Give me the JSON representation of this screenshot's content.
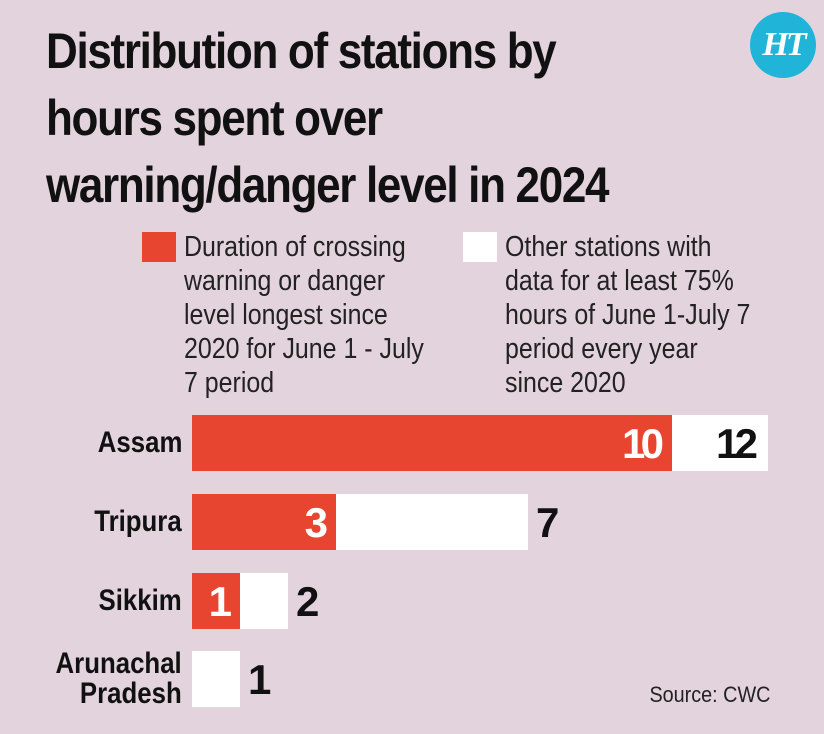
{
  "title_lines": [
    "Distribution of stations by",
    "hours spent over",
    "warning/danger level in 2024"
  ],
  "logo_text": "HT",
  "legend": [
    {
      "lines": [
        "Duration of crossing",
        "warning or danger",
        "level longest since",
        "2020 for June 1 - July",
        "7 period"
      ],
      "color": "#e84530"
    },
    {
      "lines": [
        "Other stations with",
        "data for at least 75%",
        "hours of June 1-July 7",
        "period every year",
        "since 2020"
      ],
      "color": "#ffffff"
    }
  ],
  "chart_data": {
    "type": "bar",
    "orientation": "horizontal",
    "stacking": "overlay",
    "categories": [
      [
        "Assam"
      ],
      [
        "Tripura"
      ],
      [
        "Sikkim"
      ],
      [
        "Arunachal",
        "Pradesh"
      ]
    ],
    "series": [
      {
        "values": [
          12,
          7,
          2,
          1
        ],
        "color": "#ffffff"
      },
      {
        "values": [
          10,
          3,
          1,
          0
        ],
        "color": "#e84530"
      }
    ],
    "xlim": [
      0,
      12
    ]
  },
  "source": "Source: CWC",
  "colors": {
    "background": "#e3d3dd",
    "accent": "#e84530",
    "logo": "#1fb4d8"
  }
}
